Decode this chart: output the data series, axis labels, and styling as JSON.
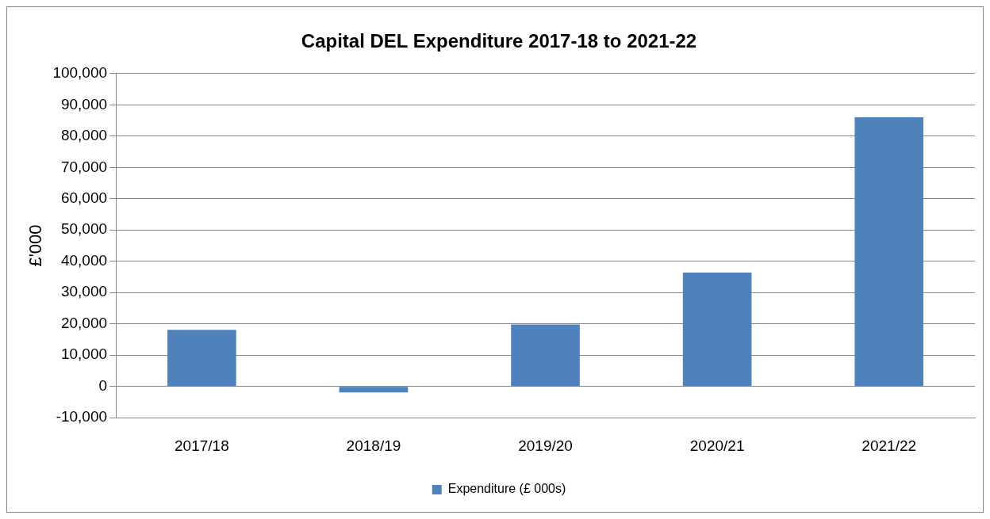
{
  "chart_data": {
    "type": "bar",
    "title": "Capital DEL Expenditure 2017-18 to 2021-22",
    "ylabel": "£'000",
    "categories": [
      "2017/18",
      "2018/19",
      "2019/20",
      "2020/21",
      "2021/22"
    ],
    "series": [
      {
        "name": "Expenditure (£ 000s)",
        "color": "#4f81bd",
        "values": [
          18100,
          -1900,
          19800,
          36400,
          86000
        ]
      }
    ],
    "ylim": [
      -10000,
      100000
    ],
    "yticks": [
      {
        "value": -10000,
        "label": "-10,000"
      },
      0,
      {
        "value": 10000,
        "label": "10,000"
      },
      {
        "value": 20000,
        "label": "20,000"
      },
      {
        "value": 30000,
        "label": "30,000"
      },
      {
        "value": 40000,
        "label": "40,000"
      },
      {
        "value": 50000,
        "label": "50,000"
      },
      {
        "value": 60000,
        "label": "60,000"
      },
      {
        "value": 70000,
        "label": "70,000"
      },
      {
        "value": 80000,
        "label": "80,000"
      },
      {
        "value": 90000,
        "label": "90,000"
      },
      {
        "value": 100000,
        "label": "100,000"
      }
    ],
    "grid": "y",
    "legend": "bottom"
  }
}
